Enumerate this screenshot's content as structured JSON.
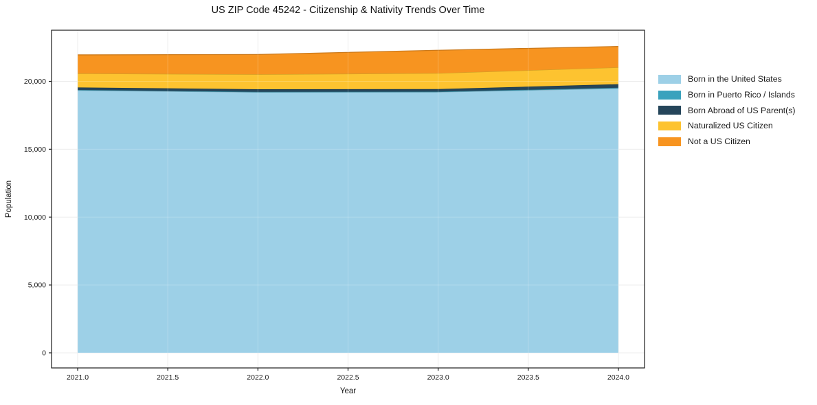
{
  "chart_data": {
    "type": "area",
    "stacked": true,
    "title": "US ZIP Code 45242 - Citizenship & Nativity Trends Over Time",
    "xlabel": "Year",
    "ylabel": "Population",
    "x": [
      2021,
      2022,
      2023,
      2024
    ],
    "series": [
      {
        "name": "Born in the United States",
        "color": "#9dd0e7",
        "values": [
          19340,
          19200,
          19210,
          19480
        ]
      },
      {
        "name": "Born in Puerto Rico / Islands",
        "color": "#3aa2bd",
        "values": [
          30,
          30,
          30,
          50
        ]
      },
      {
        "name": "Born Abroad of US Parent(s)",
        "color": "#25455a",
        "values": [
          180,
          190,
          190,
          260
        ]
      },
      {
        "name": "Naturalized US Citizen",
        "color": "#fdc330",
        "values": [
          1030,
          1100,
          1170,
          1240
        ]
      },
      {
        "name": "Not a US Citizen",
        "color": "#f79420",
        "values": [
          1370,
          1460,
          1690,
          1540
        ]
      }
    ],
    "xlim": [
      2020.855,
      2024.145
    ],
    "ylim": [
      -1113,
      23768
    ],
    "xticks": {
      "values": [
        2021.0,
        2021.5,
        2022.0,
        2022.5,
        2023.0,
        2023.5,
        2024.0
      ],
      "labels": [
        "2021.0",
        "2021.5",
        "2022.0",
        "2022.5",
        "2023.0",
        "2023.5",
        "2024.0"
      ]
    },
    "yticks": {
      "values": [
        0,
        5000,
        10000,
        15000,
        20000
      ],
      "labels": [
        "0",
        "5,000",
        "10,000",
        "15,000",
        "20,000"
      ]
    },
    "grid": true,
    "grid_color": "#e7e7e7",
    "spine_color": "#1a1a1a",
    "legend_position": "right of plot, top"
  }
}
